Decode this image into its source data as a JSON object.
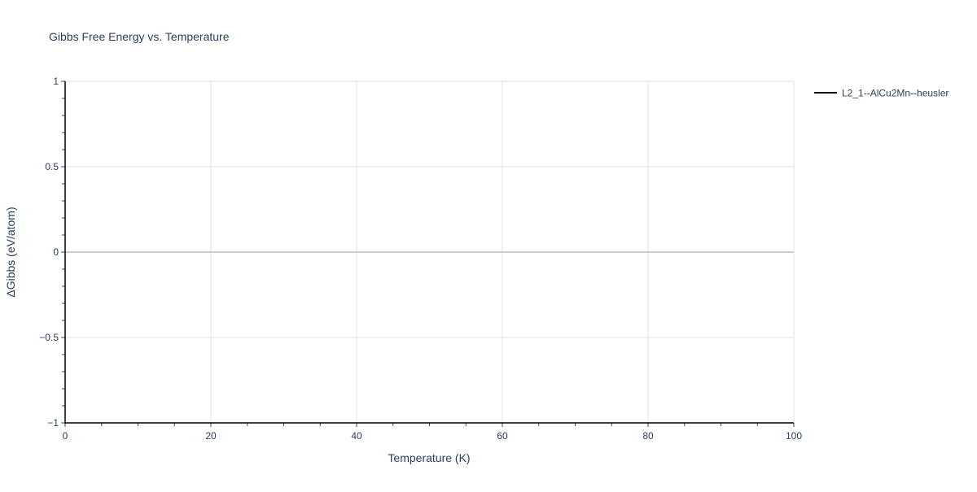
{
  "chart_data": {
    "type": "line",
    "title": "Gibbs Free Energy vs. Temperature",
    "xlabel": "Temperature (K)",
    "ylabel": "ΔGibbs (eV/atom)",
    "xlim": [
      0,
      100
    ],
    "ylim": [
      -1,
      1
    ],
    "x_ticks": [
      0,
      20,
      40,
      60,
      80,
      100
    ],
    "x_tick_labels": [
      "0",
      "20",
      "40",
      "60",
      "80",
      "100"
    ],
    "y_ticks": [
      1,
      0.5,
      0,
      -0.5,
      -1
    ],
    "y_tick_labels": [
      "1",
      "0.5",
      "0",
      "−0.5",
      "−1"
    ],
    "x_minor_step": 5,
    "y_minor_step": 0.1,
    "grid": true,
    "legend_position": "top-right outside",
    "series": [
      {
        "name": "L2_1--AlCu2Mn--heusler",
        "color": "#000000",
        "x": [],
        "y": []
      }
    ]
  }
}
